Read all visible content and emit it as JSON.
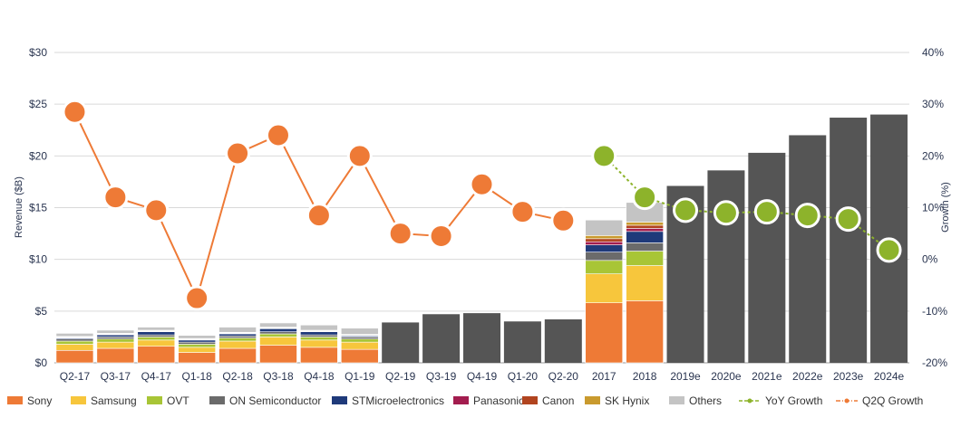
{
  "chart_data": {
    "type": "bar",
    "title": "",
    "ylabel_left": "Revenue ($B)",
    "ylabel_right": "Growth (%)",
    "y_left_ticks": [
      "$0",
      "$5",
      "$10",
      "$15",
      "$20",
      "$25",
      "$30"
    ],
    "y_left_range": [
      0,
      30
    ],
    "y_right_ticks": [
      "-20%",
      "-10%",
      "0%",
      "10%",
      "20%",
      "30%",
      "40%"
    ],
    "y_right_range": [
      -20,
      40
    ],
    "grid": true,
    "legend_position": "bottom",
    "categories": [
      "Q2-17",
      "Q3-17",
      "Q4-17",
      "Q1-18",
      "Q2-18",
      "Q3-18",
      "Q4-18",
      "Q1-19",
      "Q2-19",
      "Q3-19",
      "Q4-19",
      "Q1-20",
      "Q2-20",
      "2017",
      "2018",
      "2019e",
      "2020e",
      "2021e",
      "2022e",
      "2023e",
      "2024e"
    ],
    "stacked_series": [
      {
        "name": "Sony",
        "color": "#ee7a36",
        "values": [
          1.2,
          1.4,
          1.6,
          1.0,
          1.4,
          1.7,
          1.5,
          1.3,
          null,
          null,
          null,
          null,
          null,
          5.8,
          6.0,
          null,
          null,
          null,
          null,
          null,
          null
        ]
      },
      {
        "name": "Samsung",
        "color": "#f7c63c",
        "values": [
          0.6,
          0.6,
          0.6,
          0.5,
          0.7,
          0.8,
          0.7,
          0.7,
          null,
          null,
          null,
          null,
          null,
          2.8,
          3.4,
          null,
          null,
          null,
          null,
          null,
          null
        ]
      },
      {
        "name": "OVT",
        "color": "#a8c536",
        "values": [
          0.3,
          0.3,
          0.3,
          0.3,
          0.3,
          0.3,
          0.3,
          0.3,
          null,
          null,
          null,
          null,
          null,
          1.3,
          1.4,
          null,
          null,
          null,
          null,
          null,
          null
        ]
      },
      {
        "name": "ON Semiconductor",
        "color": "#6b6b6b",
        "values": [
          0.2,
          0.2,
          0.2,
          0.2,
          0.2,
          0.2,
          0.2,
          0.2,
          null,
          null,
          null,
          null,
          null,
          0.8,
          0.8,
          null,
          null,
          null,
          null,
          null,
          null
        ]
      },
      {
        "name": "STMicroelectronics",
        "color": "#1f3a7a",
        "values": [
          0.1,
          0.2,
          0.3,
          0.2,
          0.2,
          0.3,
          0.3,
          0.1,
          null,
          null,
          null,
          null,
          null,
          0.7,
          1.1,
          null,
          null,
          null,
          null,
          null,
          null
        ]
      },
      {
        "name": "Panasonic",
        "color": "#a31d4f",
        "values": [
          0.05,
          0.05,
          0.05,
          0.05,
          0.05,
          0.05,
          0.05,
          0.05,
          null,
          null,
          null,
          null,
          null,
          0.3,
          0.3,
          null,
          null,
          null,
          null,
          null,
          null
        ]
      },
      {
        "name": "Canon",
        "color": "#b1441f",
        "values": [
          0.05,
          0.05,
          0.05,
          0.05,
          0.05,
          0.05,
          0.05,
          0.05,
          null,
          null,
          null,
          null,
          null,
          0.3,
          0.3,
          null,
          null,
          null,
          null,
          null,
          null
        ]
      },
      {
        "name": "SK Hynix",
        "color": "#c99a2e",
        "values": [
          0.05,
          0.05,
          0.05,
          0.05,
          0.05,
          0.05,
          0.05,
          0.05,
          null,
          null,
          null,
          null,
          null,
          0.3,
          0.3,
          null,
          null,
          null,
          null,
          null,
          null
        ]
      },
      {
        "name": "Others",
        "color": "#c4c4c4",
        "values": [
          0.3,
          0.3,
          0.3,
          0.3,
          0.5,
          0.4,
          0.5,
          0.6,
          null,
          null,
          null,
          null,
          null,
          1.5,
          1.9,
          null,
          null,
          null,
          null,
          null,
          null
        ]
      }
    ],
    "total_series": {
      "name": "Total",
      "color": "#555555",
      "values": [
        null,
        null,
        null,
        null,
        null,
        null,
        null,
        null,
        3.9,
        4.7,
        4.8,
        4.0,
        4.2,
        null,
        null,
        17.1,
        18.6,
        20.3,
        22.0,
        23.7,
        24.0
      ]
    },
    "line_series": [
      {
        "name": "YoY Growth",
        "color": "#8db32b",
        "axis": "right",
        "x": [
          "2017",
          "2018",
          "2019e",
          "2020e",
          "2021e",
          "2022e",
          "2023e",
          "2024e"
        ],
        "values": [
          20,
          12,
          9.5,
          9,
          9.2,
          8.5,
          7.8,
          1.8
        ]
      },
      {
        "name": "Q2Q Growth",
        "color": "#ee7a36",
        "axis": "right",
        "x": [
          "Q2-17",
          "Q3-17",
          "Q4-17",
          "Q1-18",
          "Q2-18",
          "Q3-18",
          "Q4-18",
          "Q1-19",
          "Q2-19",
          "Q3-19",
          "Q4-19",
          "Q1-20",
          "Q2-20"
        ],
        "values": [
          28.5,
          12,
          9.5,
          -7.5,
          20.5,
          24,
          8.5,
          20,
          5,
          4.5,
          14.5,
          9.2,
          7.5
        ]
      }
    ],
    "legend": [
      "Sony",
      "Samsung",
      "OVT",
      "ON Semiconductor",
      "STMicroelectronics",
      "Panasonic",
      "Canon",
      "SK Hynix",
      "Others",
      "YoY Growth",
      "Q2Q Growth"
    ]
  }
}
